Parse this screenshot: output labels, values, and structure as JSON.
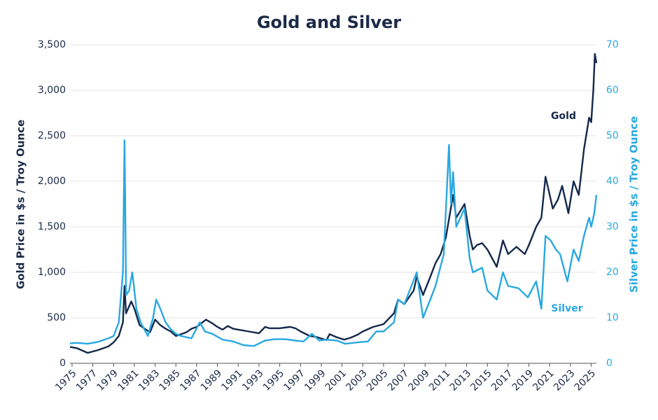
{
  "chart_data": {
    "type": "line",
    "title": "Gold and Silver",
    "y_label": "Gold Price in $s / Troy Ounce",
    "y2_label": "Silver Price in $s / Troy Ounce",
    "xlim": [
      1974.8,
      2025.5
    ],
    "xticks": [
      1975,
      1977,
      1979,
      1981,
      1983,
      1985,
      1987,
      1989,
      1991,
      1993,
      1995,
      1997,
      1999,
      2001,
      2003,
      2005,
      2007,
      2009,
      2011,
      2013,
      2015,
      2017,
      2019,
      2021,
      2023,
      2025
    ],
    "ylim": [
      0,
      3500
    ],
    "yticks": [
      0,
      500,
      {
        "value": 1000,
        "label": "1,000"
      },
      {
        "value": 1500,
        "label": "1,500"
      },
      {
        "value": 2000,
        "label": "2,000"
      },
      {
        "value": 2500,
        "label": "2,500"
      },
      {
        "value": 3000,
        "label": "3,000"
      },
      {
        "value": 3500,
        "label": "3,500"
      }
    ],
    "y2lim": [
      0,
      70
    ],
    "y2ticks": [
      0,
      10,
      20,
      30,
      40,
      50,
      60,
      70
    ],
    "grid": true,
    "series": [
      {
        "name": "Gold",
        "color": "#14284b",
        "x": [
          1974.8,
          1975.5,
          1976.5,
          1977.5,
          1978.5,
          1979.0,
          1979.5,
          1979.9,
          1980.05,
          1980.2,
          1980.7,
          1981.0,
          1981.5,
          1982.0,
          1982.5,
          1983.0,
          1983.5,
          1984.0,
          1984.5,
          1985.0,
          1985.5,
          1986.0,
          1986.5,
          1987.0,
          1987.9,
          1988.5,
          1989.0,
          1989.5,
          1990.0,
          1990.5,
          1991.0,
          1992.0,
          1993.0,
          1993.6,
          1994.0,
          1995.0,
          1996.0,
          1996.5,
          1997.0,
          1997.9,
          1998.5,
          1999.5,
          1999.8,
          2000.5,
          2001.2,
          2001.8,
          2002.5,
          2003.0,
          2004.0,
          2005.0,
          2006.0,
          2006.4,
          2007.0,
          2007.9,
          2008.2,
          2008.8,
          2009.5,
          2010.0,
          2010.5,
          2011.0,
          2011.7,
          2012.0,
          2012.8,
          2013.3,
          2013.6,
          2014.0,
          2014.5,
          2015.0,
          2015.9,
          2016.5,
          2017.0,
          2017.8,
          2018.6,
          2019.0,
          2019.7,
          2020.2,
          2020.6,
          2021.0,
          2021.3,
          2021.8,
          2022.2,
          2022.8,
          2023.3,
          2023.8,
          2024.0,
          2024.3,
          2024.8,
          2025.0,
          2025.2,
          2025.35,
          2025.5
        ],
        "values": [
          180,
          165,
          115,
          145,
          185,
          230,
          300,
          450,
          850,
          550,
          680,
          600,
          420,
          380,
          340,
          480,
          420,
          380,
          350,
          300,
          320,
          340,
          380,
          400,
          480,
          440,
          400,
          370,
          410,
          380,
          370,
          350,
          330,
          400,
          385,
          385,
          400,
          385,
          350,
          300,
          290,
          255,
          320,
          285,
          260,
          280,
          315,
          350,
          400,
          430,
          550,
          700,
          650,
          800,
          950,
          750,
          950,
          1100,
          1200,
          1380,
          1850,
          1600,
          1750,
          1400,
          1250,
          1300,
          1320,
          1250,
          1060,
          1350,
          1200,
          1280,
          1200,
          1300,
          1500,
          1600,
          2050,
          1850,
          1700,
          1800,
          1950,
          1650,
          2000,
          1850,
          2050,
          2350,
          2700,
          2650,
          3000,
          3400,
          3300
        ]
      },
      {
        "name": "Silver",
        "color": "#29a8e0",
        "axis": "y2",
        "x": [
          1974.8,
          1975.5,
          1976.5,
          1977.5,
          1978.5,
          1979.0,
          1979.5,
          1979.9,
          1980.05,
          1980.12,
          1980.2,
          1980.5,
          1980.8,
          1981.2,
          1981.6,
          1982.3,
          1982.8,
          1983.1,
          1983.5,
          1984.0,
          1984.5,
          1985.0,
          1985.5,
          1986.5,
          1987.3,
          1987.8,
          1988.5,
          1989.5,
          1990.5,
          1991.5,
          1992.5,
          1993.6,
          1994.5,
          1995.5,
          1996.5,
          1997.3,
          1998.1,
          1998.8,
          1999.5,
          2000.5,
          2001.3,
          2002.5,
          2003.5,
          2004.3,
          2005.0,
          2006.0,
          2006.4,
          2007.0,
          2008.2,
          2008.8,
          2009.5,
          2010.0,
          2010.8,
          2011.3,
          2011.5,
          2011.7,
          2012.0,
          2012.8,
          2013.3,
          2013.6,
          2014.5,
          2015.0,
          2015.9,
          2016.5,
          2017.0,
          2018.0,
          2018.9,
          2019.7,
          2020.2,
          2020.6,
          2021.1,
          2021.6,
          2022.0,
          2022.7,
          2023.3,
          2023.8,
          2024.3,
          2024.8,
          2025.0,
          2025.3,
          2025.5
        ],
        "values": [
          4.4,
          4.5,
          4.3,
          4.7,
          5.5,
          6,
          9,
          20,
          49,
          35,
          15,
          16,
          20,
          12,
          9,
          6,
          10,
          14,
          12,
          9,
          7.5,
          6.5,
          6,
          5.5,
          9,
          7,
          6.5,
          5.2,
          4.8,
          4,
          3.8,
          5,
          5.3,
          5.3,
          5,
          4.8,
          6.5,
          5,
          5.2,
          5,
          4.3,
          4.6,
          4.8,
          7,
          7,
          9,
          14,
          13,
          20,
          10,
          14,
          17,
          24,
          48,
          35,
          42,
          30,
          34,
          23,
          20,
          21,
          16,
          14,
          20,
          17,
          16.5,
          14.5,
          18,
          12,
          28,
          27,
          25,
          24,
          18,
          25,
          22.5,
          28,
          32,
          30,
          33,
          37
        ]
      }
    ]
  }
}
